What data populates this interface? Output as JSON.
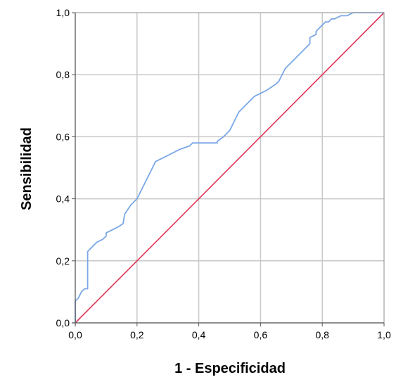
{
  "chart_data": {
    "type": "line",
    "title": "",
    "xlabel": "1 - Especificidad",
    "ylabel": "Sensibilidad",
    "xlim": [
      0,
      1
    ],
    "ylim": [
      0,
      1
    ],
    "grid": true,
    "x_ticks": [
      0,
      0.2,
      0.4,
      0.6,
      0.8,
      1.0
    ],
    "y_ticks": [
      0,
      0.2,
      0.4,
      0.6,
      0.8,
      1.0
    ],
    "x_tick_labels": [
      "0,0",
      "0,2",
      "0,4",
      "0,6",
      "0,8",
      "1,0"
    ],
    "y_tick_labels": [
      "0,0",
      "0,2",
      "0,4",
      "0,6",
      "0,8",
      "1,0"
    ],
    "colors": {
      "roc": "#7aa7e6",
      "reference": "#e0325a",
      "grid": "#c8c8c8",
      "frame": "#a0a0a0"
    },
    "series": [
      {
        "x": [
          0,
          0,
          0.01,
          0.02,
          0.03,
          0.04,
          0.04,
          0.05,
          0.07,
          0.09,
          0.1,
          0.1,
          0.12,
          0.14,
          0.155,
          0.16,
          0.18,
          0.2,
          0.21,
          0.23,
          0.25,
          0.26,
          0.3,
          0.34,
          0.37,
          0.38,
          0.42,
          0.46,
          0.46,
          0.48,
          0.5,
          0.52,
          0.53,
          0.55,
          0.56,
          0.58,
          0.62,
          0.65,
          0.66,
          0.68,
          0.7,
          0.72,
          0.74,
          0.75,
          0.76,
          0.76,
          0.78,
          0.78,
          0.8,
          0.81,
          0.82,
          0.83,
          0.84,
          0.86,
          0.88,
          0.9,
          0.96,
          1.0
        ],
        "y": [
          0,
          0.07,
          0.08,
          0.1,
          0.11,
          0.11,
          0.23,
          0.24,
          0.26,
          0.27,
          0.28,
          0.29,
          0.3,
          0.31,
          0.32,
          0.35,
          0.38,
          0.4,
          0.42,
          0.46,
          0.5,
          0.52,
          0.54,
          0.56,
          0.57,
          0.58,
          0.58,
          0.58,
          0.585,
          0.6,
          0.62,
          0.66,
          0.68,
          0.7,
          0.71,
          0.73,
          0.75,
          0.77,
          0.78,
          0.82,
          0.84,
          0.86,
          0.88,
          0.89,
          0.9,
          0.92,
          0.93,
          0.94,
          0.96,
          0.97,
          0.97,
          0.98,
          0.98,
          0.99,
          0.99,
          1.0,
          1.0,
          1.0
        ]
      },
      {
        "x": [
          0,
          1
        ],
        "y": [
          0,
          1
        ]
      }
    ]
  }
}
